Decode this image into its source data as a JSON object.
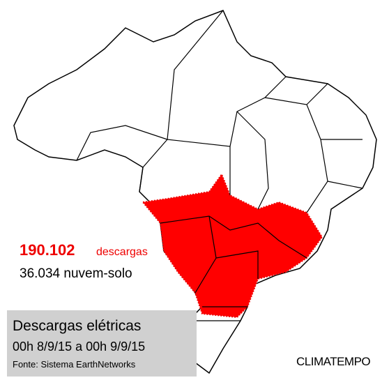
{
  "stats": {
    "total_value": "190.102",
    "total_unit": "descargas",
    "cloud_ground": "36.034 nuvem-solo"
  },
  "caption": {
    "title": "Descargas elétricas",
    "period": "00h 8/9/15 a 00h 9/9/15",
    "source": "Fonte: Sistema EarthNetworks"
  },
  "brand": "CLIMATEMPO"
}
